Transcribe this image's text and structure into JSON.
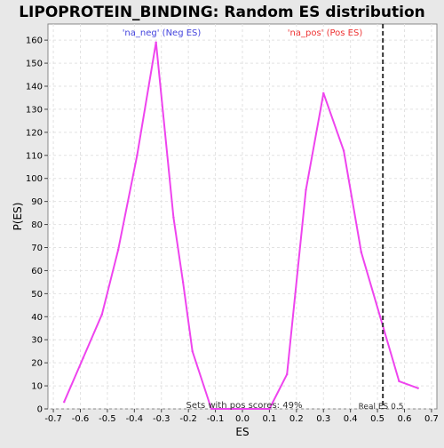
{
  "chart_data": {
    "type": "line",
    "title": "LIPOPROTEIN_BINDING: Random ES distribution",
    "xlabel": "ES",
    "ylabel": "P(ES)",
    "xlim": [
      -0.72,
      0.72
    ],
    "ylim": [
      0,
      167
    ],
    "x_ticks": [
      -0.7,
      -0.6,
      -0.5,
      -0.4,
      -0.3,
      -0.2,
      -0.1,
      0.0,
      0.1,
      0.2,
      0.3,
      0.4,
      0.5,
      0.6,
      0.7
    ],
    "x_tick_labels": [
      "-0.7",
      "-0.6",
      "-0.5",
      "-0.4",
      "-0.3",
      "-0.2",
      "-0.1",
      "0.0",
      "0.1",
      "0.2",
      "0.3",
      "0.4",
      "0.5",
      "0.6",
      "0.7"
    ],
    "y_ticks": [
      0,
      10,
      20,
      30,
      40,
      50,
      60,
      70,
      80,
      90,
      100,
      110,
      120,
      130,
      140,
      150,
      160
    ],
    "y_tick_labels": [
      "0",
      "10",
      "20",
      "30",
      "40",
      "50",
      "60",
      "70",
      "80",
      "90",
      "100",
      "110",
      "120",
      "130",
      "140",
      "150",
      "160"
    ],
    "grid": true,
    "series": [
      {
        "name": "",
        "color": "#ee44ee",
        "x": [
          -0.66,
          -0.59,
          -0.52,
          -0.46,
          -0.39,
          -0.32,
          -0.255,
          -0.22,
          -0.185,
          -0.115,
          -0.05,
          0.0,
          0.1,
          0.165,
          0.235,
          0.3,
          0.375,
          0.44,
          0.51,
          0.58,
          0.65
        ],
        "y": [
          3,
          22,
          41,
          69,
          110,
          159,
          83,
          55,
          25,
          0,
          0,
          0,
          0,
          15,
          95,
          137,
          112,
          68,
          40,
          12,
          9
        ]
      }
    ],
    "reference_line": {
      "x": 0.52,
      "label": "Real ES 0.5"
    },
    "annotations": {
      "neg_label": "'na_neg' (Neg ES)",
      "neg_color": "#4444dd",
      "pos_label": "'na_pos' (Pos ES)",
      "pos_color": "#ee3333",
      "sets_text": "Sets with pos scores: 49%"
    }
  }
}
